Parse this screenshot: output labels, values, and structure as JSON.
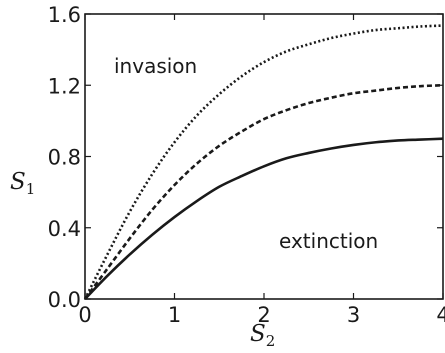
{
  "chart_data": {
    "type": "line",
    "xlabel": {
      "main": "S",
      "sub": "2"
    },
    "ylabel": {
      "main": "S",
      "sub": "1"
    },
    "xlim": [
      0,
      4
    ],
    "ylim": [
      0,
      1.6
    ],
    "x_ticks": [
      "0",
      "1",
      "2",
      "3",
      "4"
    ],
    "y_ticks": [
      "0.0",
      "0.4",
      "0.8",
      "1.2",
      "1.6"
    ],
    "grid": false,
    "legend": "none",
    "annotations": [
      {
        "text": "invasion",
        "region": "upper-left"
      },
      {
        "text": "extinction",
        "region": "lower-right"
      }
    ],
    "x": [
      0,
      0.25,
      0.5,
      0.75,
      1.0,
      1.25,
      1.5,
      1.75,
      2.0,
      2.25,
      2.5,
      2.75,
      3.0,
      3.25,
      3.5,
      3.75,
      4.0
    ],
    "series": [
      {
        "style": "solid",
        "color": "#1a1a1a",
        "values": [
          0,
          0.13,
          0.25,
          0.36,
          0.46,
          0.55,
          0.63,
          0.69,
          0.745,
          0.79,
          0.82,
          0.845,
          0.865,
          0.88,
          0.89,
          0.895,
          0.9
        ]
      },
      {
        "style": "dashed",
        "color": "#1a1a1a",
        "values": [
          0,
          0.17,
          0.34,
          0.5,
          0.64,
          0.76,
          0.86,
          0.94,
          1.01,
          1.06,
          1.1,
          1.13,
          1.155,
          1.17,
          1.185,
          1.195,
          1.2
        ]
      },
      {
        "style": "dotted",
        "color": "#1a1a1a",
        "values": [
          0,
          0.25,
          0.49,
          0.7,
          0.88,
          1.03,
          1.15,
          1.25,
          1.33,
          1.39,
          1.43,
          1.465,
          1.49,
          1.51,
          1.52,
          1.53,
          1.535
        ]
      }
    ]
  }
}
